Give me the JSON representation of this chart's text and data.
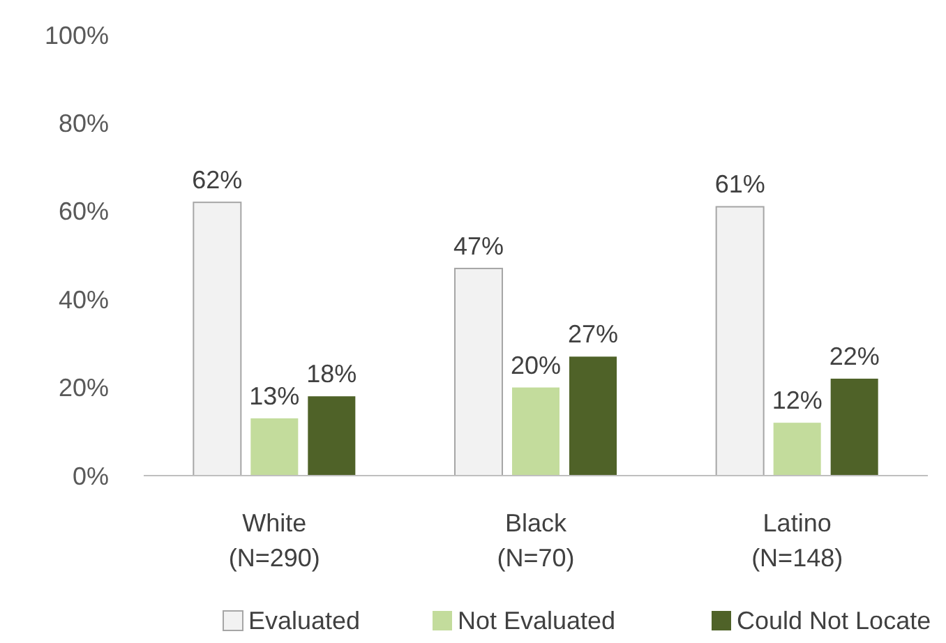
{
  "chart_data": {
    "type": "bar",
    "categories": [
      "White\n(N=290)",
      "Black\n(N=70)",
      "Latino\n(N=148)"
    ],
    "series": [
      {
        "name": "Evaluated",
        "color": "#f2f2f2",
        "values": [
          62,
          47,
          61
        ],
        "value_labels": [
          "62%",
          "47%",
          "61%"
        ]
      },
      {
        "name": "Not Evaluated",
        "color": "#c3dc9c",
        "values": [
          13,
          20,
          12
        ],
        "value_labels": [
          "13%",
          "20%",
          "12%"
        ]
      },
      {
        "name": "Could Not Locate",
        "color": "#4f6228",
        "values": [
          18,
          27,
          22
        ],
        "value_labels": [
          "18%",
          "27%",
          "22%"
        ]
      }
    ],
    "ylim": [
      0,
      100
    ],
    "yticks": [
      {
        "value": 0,
        "label": "0%"
      },
      {
        "value": 20,
        "label": "20%"
      },
      {
        "value": 40,
        "label": "40%"
      },
      {
        "value": 60,
        "label": "60%"
      },
      {
        "value": 80,
        "label": "80%"
      },
      {
        "value": 100,
        "label": "100%"
      }
    ],
    "grid": false,
    "legend": "bottom"
  }
}
